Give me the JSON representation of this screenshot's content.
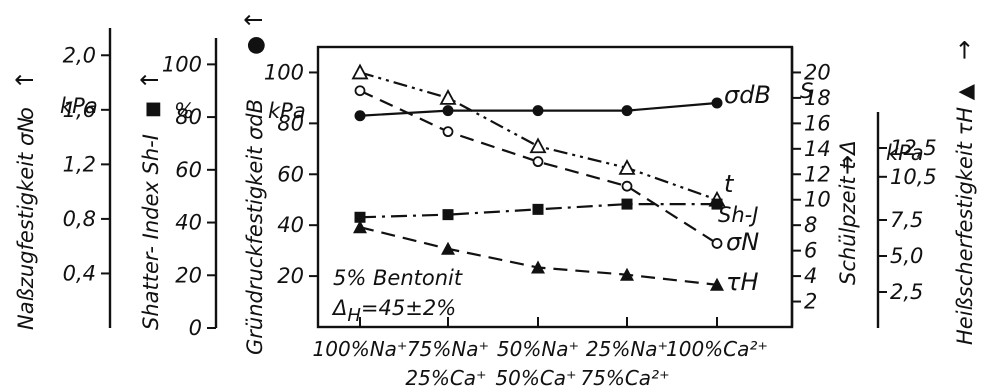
{
  "chart_data": {
    "type": "line",
    "axes": {
      "left_1": {
        "label": "Naßzugfestigkeit σN",
        "marker_symbol": "o",
        "unit": "kPa",
        "arrow": "↑",
        "ticks": [
          "0,4",
          "0,8",
          "1,2",
          "1,6",
          "2,0"
        ],
        "ylim": [
          0,
          2.2
        ]
      },
      "left_2": {
        "label": "Shatter- Index Sh-I",
        "marker_symbol": "■",
        "unit": "%",
        "arrow": "↑",
        "ticks": [
          "0",
          "20",
          "40",
          "60",
          "80",
          "100"
        ],
        "ylim": [
          0,
          110
        ]
      },
      "left_3": {
        "label": "Gründruckfestigkeit σdB",
        "marker_symbol": "●",
        "unit": "kPa",
        "arrow": "↑",
        "ticks": [
          "20",
          "40",
          "60",
          "80",
          "100"
        ],
        "ylim": [
          0,
          110
        ]
      },
      "right_1": {
        "label": "Schülpzeit t Δ",
        "arrow": "→",
        "ticks": [
          "2",
          "4",
          "6",
          "8",
          "10",
          "12",
          "14",
          "16",
          "18",
          "20"
        ],
        "ylim": [
          0,
          22
        ]
      },
      "right_2": {
        "label": "Heißscherfestigkeit τH ▲",
        "arrow": "→",
        "unit": "kPa",
        "ticks": [
          "2,5",
          "5,0",
          "7,5",
          "10,5",
          "12,5"
        ],
        "ylim": [
          0,
          15
        ]
      }
    },
    "x": {
      "categories_top": [
        "100%Na⁺",
        "75%Na⁺",
        "50%Na⁺",
        "25%Na⁺",
        "100%Ca²⁺"
      ],
      "categories_bottom": [
        "",
        "25%Ca⁺",
        "50%Ca⁺",
        "75%Ca²⁺",
        ""
      ]
    },
    "series": [
      {
        "name": "σdB",
        "marker": "filled-circle",
        "dash": "solid",
        "axis": "left_3",
        "values": [
          83,
          85,
          85,
          85,
          88
        ]
      },
      {
        "name": "S",
        "marker": "open-triangle",
        "dash": "dash-dot-dot",
        "axis": "right_1",
        "values": [
          20,
          18,
          14.2,
          12.5,
          10
        ]
      },
      {
        "name": "t",
        "marker": "none",
        "dash": "none",
        "axis": "right_1",
        "values": []
      },
      {
        "name": "σN",
        "marker": "open-circle",
        "dash": "dashed",
        "axis": "left_1",
        "values": [
          1.74,
          1.44,
          1.22,
          1.04,
          0.62
        ]
      },
      {
        "name": "Sh-J",
        "marker": "filled-square",
        "dash": "dash-dot",
        "axis": "left_2",
        "values": [
          42,
          43,
          45,
          47,
          47
        ]
      },
      {
        "name": "τH",
        "marker": "filled-triangle",
        "dash": "dashed",
        "axis": "right_2",
        "values": [
          7.0,
          5.5,
          4.2,
          3.7,
          3.0
        ]
      }
    ],
    "annotation": {
      "line1": "5% Bentonit",
      "line2_prefix": "Δ",
      "line2_sub": "H",
      "line2_suffix": "=45±2%"
    }
  }
}
